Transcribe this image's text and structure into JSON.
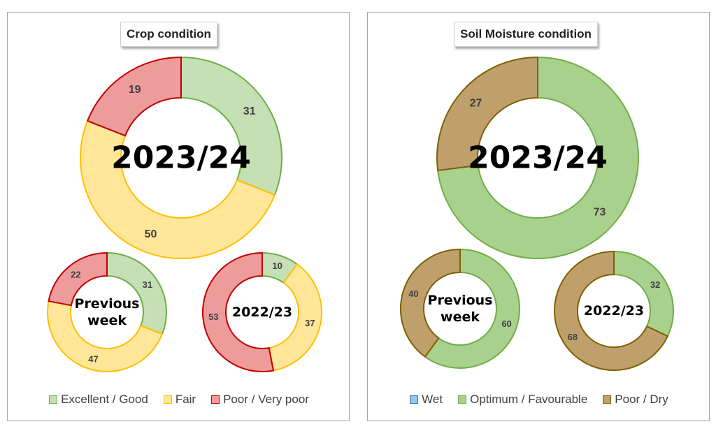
{
  "chart_data": [
    {
      "type": "donut",
      "title": "Crop condition",
      "categories": [
        "Excellent / Good",
        "Fair",
        "Poor / Very poor"
      ],
      "colors": {
        "fill": [
          "#c5e0b4",
          "#ffe699",
          "#ee9b9b"
        ],
        "stroke": [
          "#70ad47",
          "#ffc000",
          "#c00000"
        ]
      },
      "series": [
        {
          "name": "2023/24",
          "values": [
            31,
            50,
            19
          ]
        },
        {
          "name": "Previous week",
          "values": [
            31,
            47,
            22
          ]
        },
        {
          "name": "2022/23",
          "values": [
            10,
            37,
            53
          ]
        }
      ],
      "legend_position": "bottom"
    },
    {
      "type": "donut",
      "title": "Soil Moisture condition",
      "categories": [
        "Wet",
        "Optimum / Favourable",
        "Poor / Dry"
      ],
      "colors": {
        "fill": [
          "#9dc3e6",
          "#a9d18e",
          "#bfa06c"
        ],
        "stroke": [
          "#2e75b6",
          "#70ad47",
          "#7f6000"
        ]
      },
      "series": [
        {
          "name": "2023/24",
          "values": [
            0,
            73,
            27
          ]
        },
        {
          "name": "Previous week",
          "values": [
            0,
            60,
            40
          ]
        },
        {
          "name": "2022/23",
          "values": [
            0,
            32,
            68
          ]
        }
      ],
      "legend_position": "bottom"
    }
  ]
}
